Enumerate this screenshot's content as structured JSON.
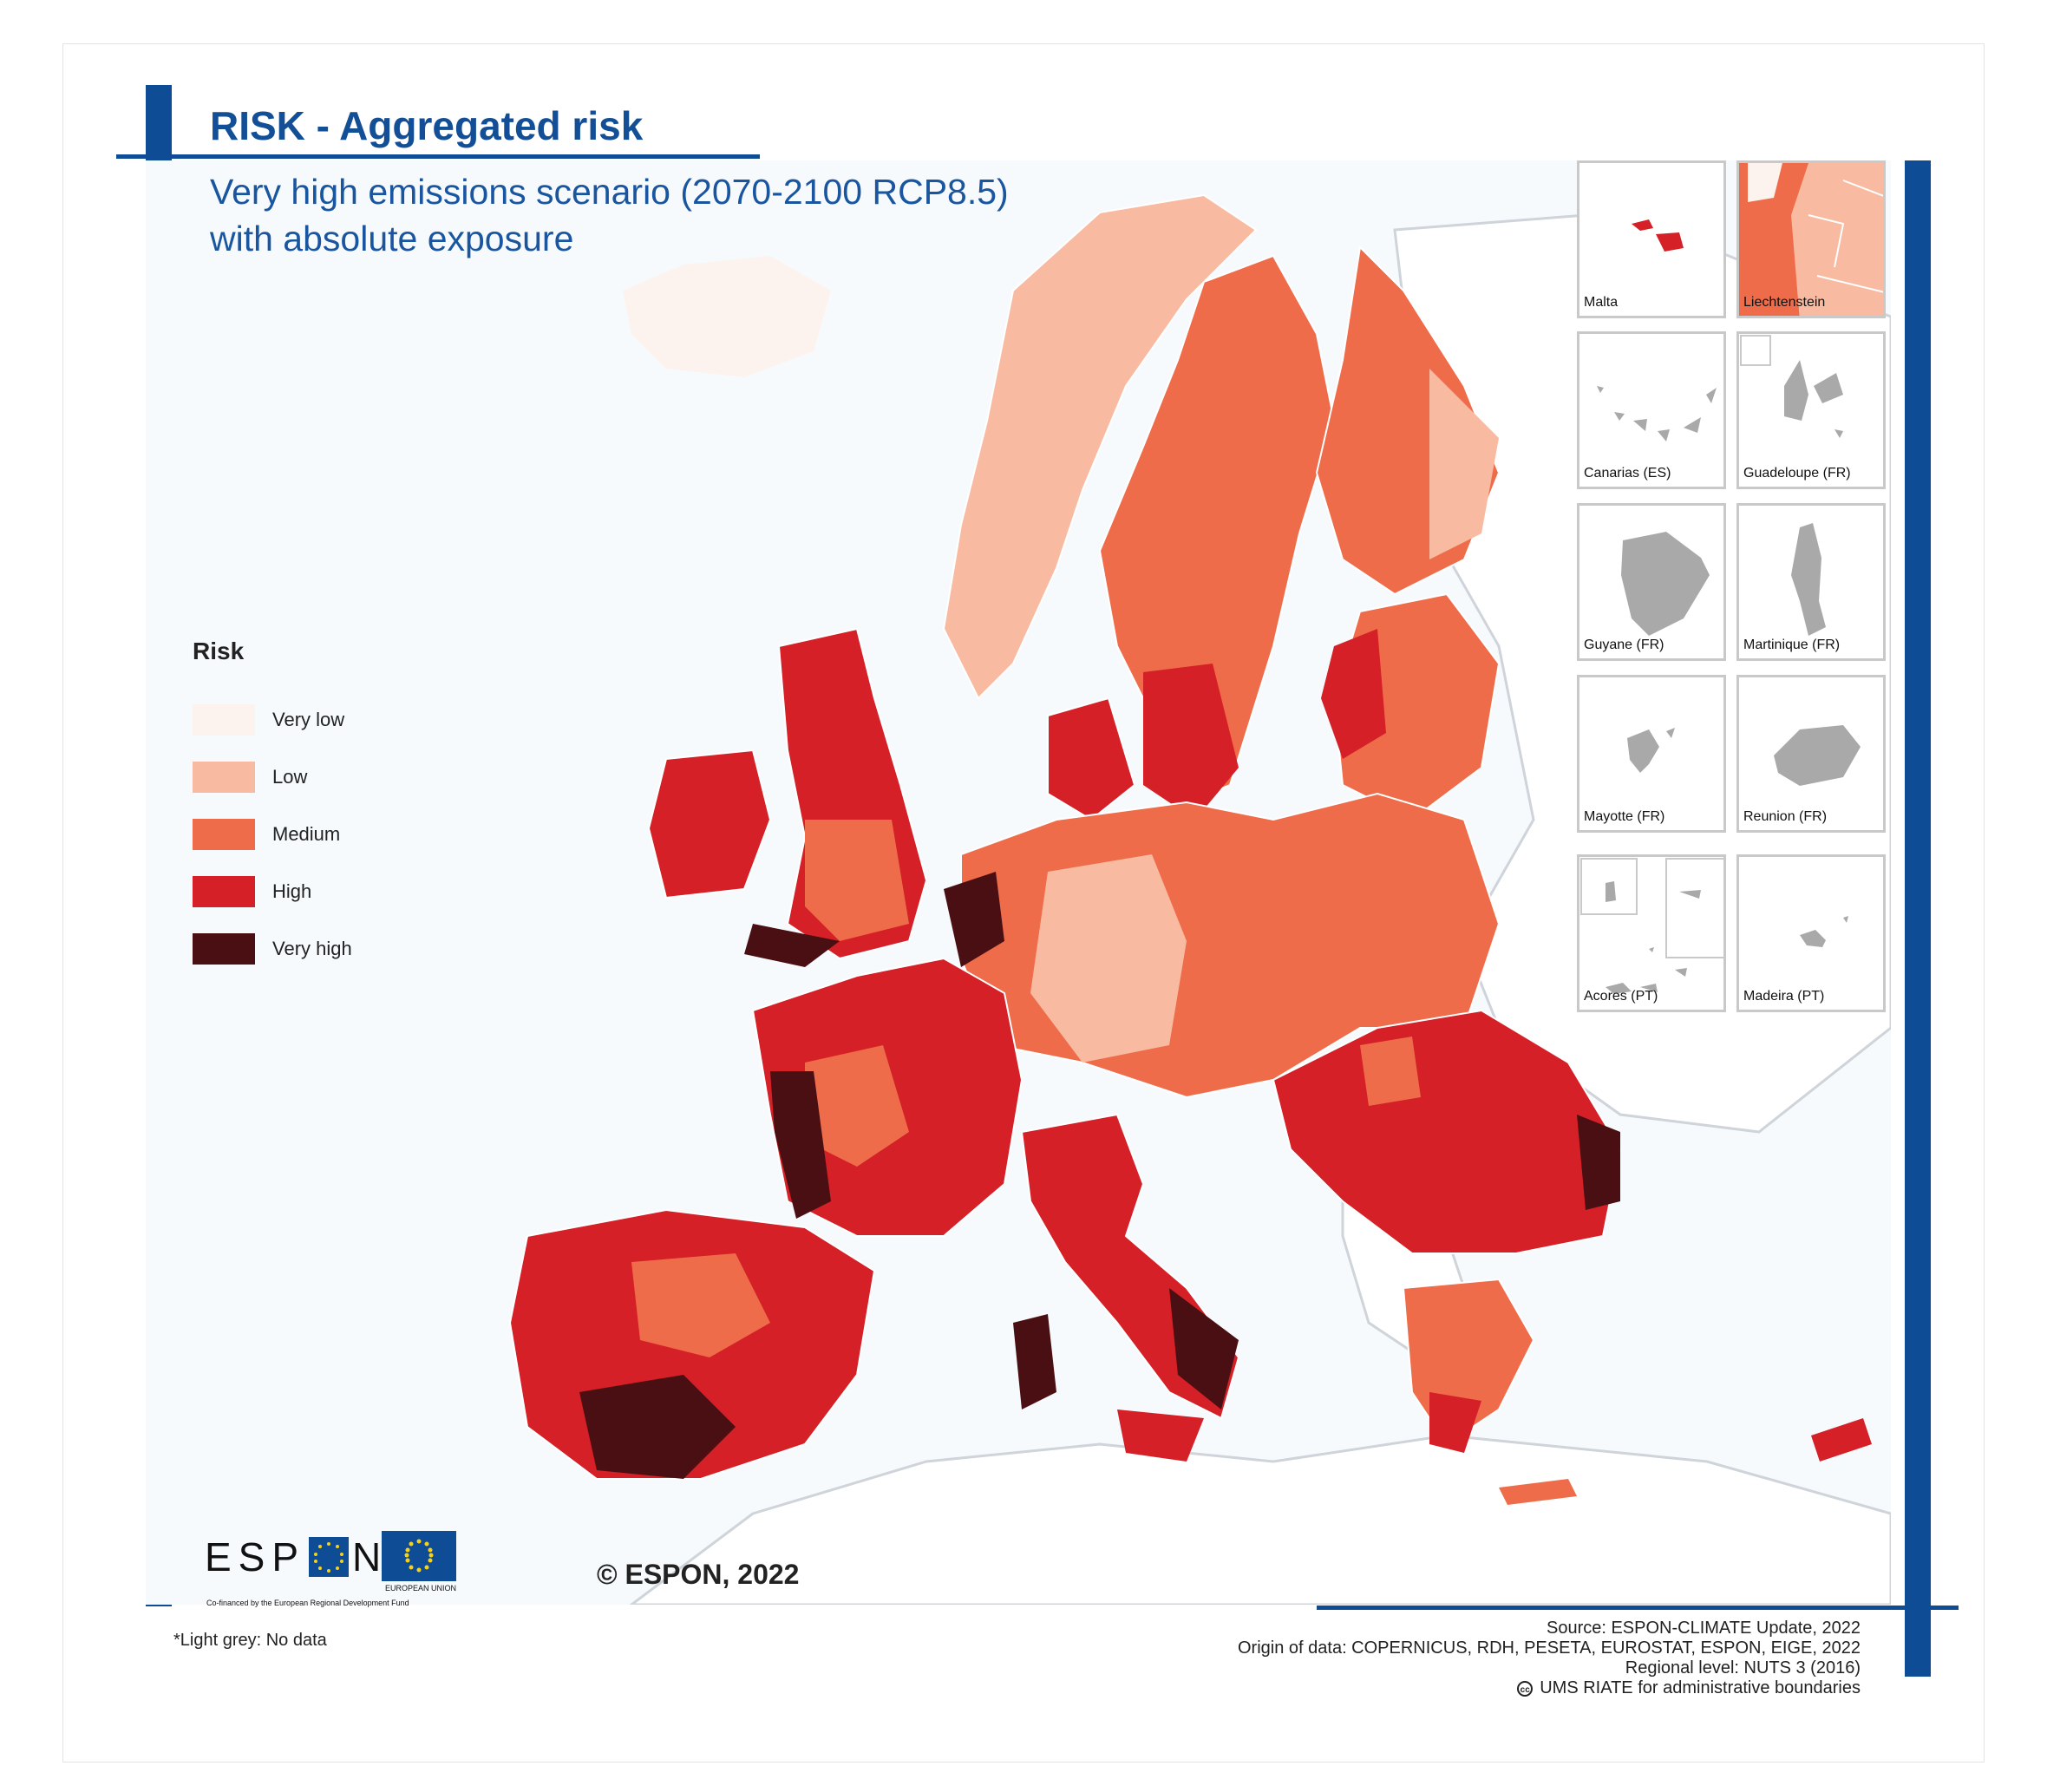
{
  "header": {
    "title": "RISK - Aggregated risk",
    "subtitle_line1": "Very high emissions scenario (2070-2100 RCP8.5)",
    "subtitle_line2": "with absolute exposure"
  },
  "legend": {
    "title": "Risk",
    "items": [
      {
        "label": "Very low",
        "color": "#fdf3ee"
      },
      {
        "label": "Low",
        "color": "#f8bba1"
      },
      {
        "label": "Medium",
        "color": "#ef6c4a"
      },
      {
        "label": "High",
        "color": "#d42026"
      },
      {
        "label": "Very high",
        "color": "#4a0f12"
      }
    ]
  },
  "insets": [
    {
      "label": "Malta"
    },
    {
      "label": "Liechtenstein"
    },
    {
      "label": "Canarias (ES)"
    },
    {
      "label": "Guadeloupe (FR)"
    },
    {
      "label": "Guyane (FR)"
    },
    {
      "label": "Martinique (FR)"
    },
    {
      "label": "Mayotte (FR)"
    },
    {
      "label": "Reunion (FR)"
    },
    {
      "label": "Acores (PT)"
    },
    {
      "label": "Madeira (PT)"
    }
  ],
  "colors": {
    "no_data": "#a9a9a9",
    "background_sea": "#f7fafd",
    "accent": "#0f4c96"
  },
  "footer": {
    "copyright": "© ESPON, 2022",
    "note": "*Light grey: No data",
    "source": "Source: ESPON-CLIMATE Update, 2022",
    "origin": "Origin of data: COPERNICUS, RDH, PESETA, EUROSTAT, ESPON, EIGE, 2022",
    "regional_level": "Regional level: NUTS 3 (2016)",
    "boundaries": "UMS RIATE for administrative boundaries",
    "cc_symbol": "cc"
  },
  "logos": {
    "espon_left": "ESP",
    "espon_right": "N",
    "eu_label": "EUROPEAN UNION",
    "cofinanced": "Co-financed by the European Regional Development Fund"
  }
}
